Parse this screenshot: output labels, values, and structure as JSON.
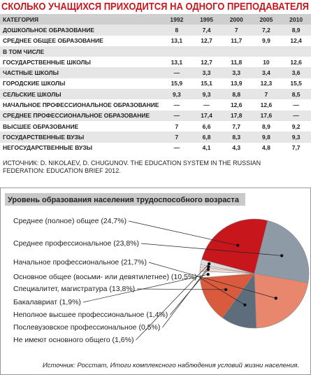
{
  "header": {
    "title": "СКОЛЬКО УЧАЩИХСЯ ПРИХОДИТСЯ НА ОДНОГО ПРЕПОДАВАТЕЛЯ"
  },
  "table": {
    "columns": [
      "КАТЕГОРИЯ",
      "1992",
      "1995",
      "2000",
      "2005",
      "2010"
    ],
    "rows": [
      [
        "ДОШКОЛЬНОЕ ОБРАЗОВАНИЕ",
        "8",
        "7,4",
        "7",
        "7,2",
        "8,9"
      ],
      [
        "СРЕДНЕЕ ОБЩЕЕ ОБРАЗОВАНИЕ",
        "13,1",
        "12,7",
        "11,7",
        "9,9",
        "12,4"
      ],
      [
        "В ТОМ ЧИСЛЕ"
      ],
      [
        "ГОСУДАРСТВЕННЫЕ ШКОЛЫ",
        "13,1",
        "12,7",
        "11,8",
        "10",
        "12,6"
      ],
      [
        "ЧАСТНЫЕ ШКОЛЫ",
        "—",
        "3,3",
        "3,3",
        "3,4",
        "3,6"
      ],
      [
        "ГОРОДСКИЕ ШКОЛЫ",
        "15,9",
        "15,1",
        "13,9",
        "12,3",
        "15,5"
      ],
      [
        "СЕЛЬСКИЕ ШКОЛЫ",
        "9,3",
        "9,3",
        "8,8",
        "7",
        "8,5"
      ],
      [
        "НАЧАЛЬНОЕ ПРОФЕССИОНАЛЬНОЕ ОБРАЗОВАНИЕ",
        "—",
        "—",
        "12,6",
        "12,6",
        "—"
      ],
      [
        "СРЕДНЕЕ ПРОФЕССИОНАЛЬНОЕ ОБРАЗОВАНИЕ",
        "—",
        "17,4",
        "17,8",
        "17,6",
        "—"
      ],
      [
        "ВЫСШЕЕ ОБРАЗОВАНИЕ",
        "7",
        "6,6",
        "7,7",
        "8,9",
        "9,2"
      ],
      [
        "ГОСУДАРСТВЕННЫЕ ВУЗЫ",
        "7",
        "6,8",
        "8,3",
        "9,8",
        "9,3"
      ],
      [
        "НЕГОСУДАРСТВЕННЫЕ ВУЗЫ",
        "—",
        "4,1",
        "4,3",
        "4,8",
        "7,7"
      ]
    ],
    "source": "ИСТОЧНИК: D. NIKOLAEV, D. CHUGUNOV. THE EDUCATION SYSTEM IN THE RUSSIAN FEDERATION: EDUCATION BRIEF 2012."
  },
  "chart_data": {
    "type": "pie",
    "title": "Уровень образования населения трудоспособного возраста",
    "categories": [
      "Среднее (полное) общее",
      "Среднее профессиональное",
      "Начальное профессиональное",
      "Основное общее (восьми- или девятилетнее)",
      "Специалитет, магистратура",
      "Бакалавриат",
      "Неполное высшее профессиональное",
      "Послевузовское профессиональное",
      "Не имеют основного общего"
    ],
    "values": [
      24.7,
      23.8,
      21.7,
      10.5,
      13.8,
      1.9,
      1.4,
      0.5,
      1.6
    ],
    "value_labels": [
      "(24,7%)",
      "(23,8%)",
      "(21,7%)",
      "(10,5%)",
      "(13,8%)",
      "(1,9%)",
      "(1,4%)",
      "(0,5%)",
      "(1,6%)"
    ],
    "colors": [
      "#c8161d",
      "#8e9ba6",
      "#e8876e",
      "#5d6d7c",
      "#d95a3c",
      "#ffffff",
      "#f2d6cc",
      "#ffffff",
      "#dddddd"
    ],
    "source": "Источник: Росстат, Итоги комплексного наблюдения условий жизни населения."
  }
}
